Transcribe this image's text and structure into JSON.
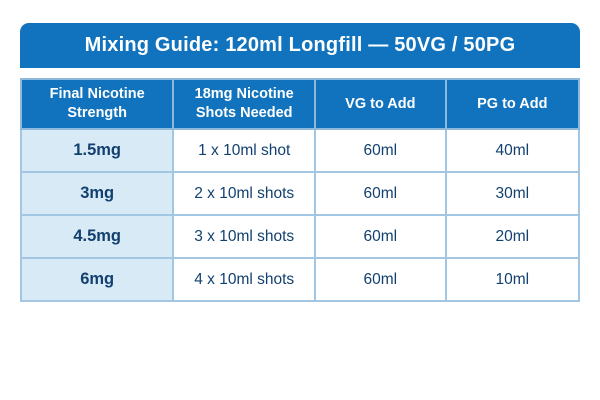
{
  "title": "Mixing Guide: 120ml Longfill — 50VG / 50PG",
  "chart_data": {
    "type": "table",
    "title": "Mixing Guide: 120ml Longfill — 50VG / 50PG",
    "columns": [
      "Final Nicotine Strength",
      "18mg Nicotine Shots Needed",
      "VG to Add",
      "PG to Add"
    ],
    "rows": [
      [
        "1.5mg",
        "1 x 10ml shot",
        "60ml",
        "40ml"
      ],
      [
        "3mg",
        "2 x 10ml shots",
        "60ml",
        "30ml"
      ],
      [
        "4.5mg",
        "3 x 10ml shots",
        "60ml",
        "20ml"
      ],
      [
        "6mg",
        "4 x 10ml shots",
        "60ml",
        "10ml"
      ]
    ]
  },
  "colors": {
    "banner": "#1173bd",
    "header_text": "#ffffff",
    "row_highlight": "#d9eaf7",
    "text": "#12406f",
    "border": "#a3c6e2",
    "page_bg": "#ffffff"
  }
}
